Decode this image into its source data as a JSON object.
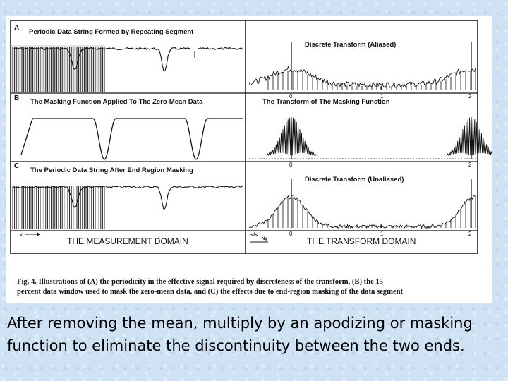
{
  "figure": {
    "panels": {
      "a": {
        "letter": "A",
        "title": "Periodic Data String Formed by Repeating Segment"
      },
      "b": {
        "letter": "B",
        "title": "The Masking Function Applied To The Zero-Mean Data"
      },
      "c": {
        "letter": "C",
        "title": "The Periodic Data String After End Region Masking"
      },
      "ra": {
        "title": "Discrete Transform (Aliased)"
      },
      "rb": {
        "title": "The Transform of The Masking Function"
      },
      "rc": {
        "title": "Discrete Transform (Unaliased)"
      }
    },
    "ticks": {
      "zero": "0",
      "one": "1",
      "two": "2"
    },
    "axis": {
      "x_arrow": "x",
      "s_label": "s/s",
      "s_sub": "Ny"
    },
    "domains": {
      "left": "THE MEASUREMENT DOMAIN",
      "right": "THE TRANSFORM DOMAIN"
    },
    "caption": {
      "line1": "Fig. 4. Illustrations of (A) the periodicity in the effective signal required by discreteness of the transform, (B) the 15",
      "line2": "percent data window used to mask the zero-mean data, and (C) the effects due to end-region masking of the data segment"
    }
  },
  "slide_text": {
    "line1": "After removing the mean, multiply by an apodizing or masking",
    "line2": "function to eliminate the discontinuity between the two ends."
  }
}
